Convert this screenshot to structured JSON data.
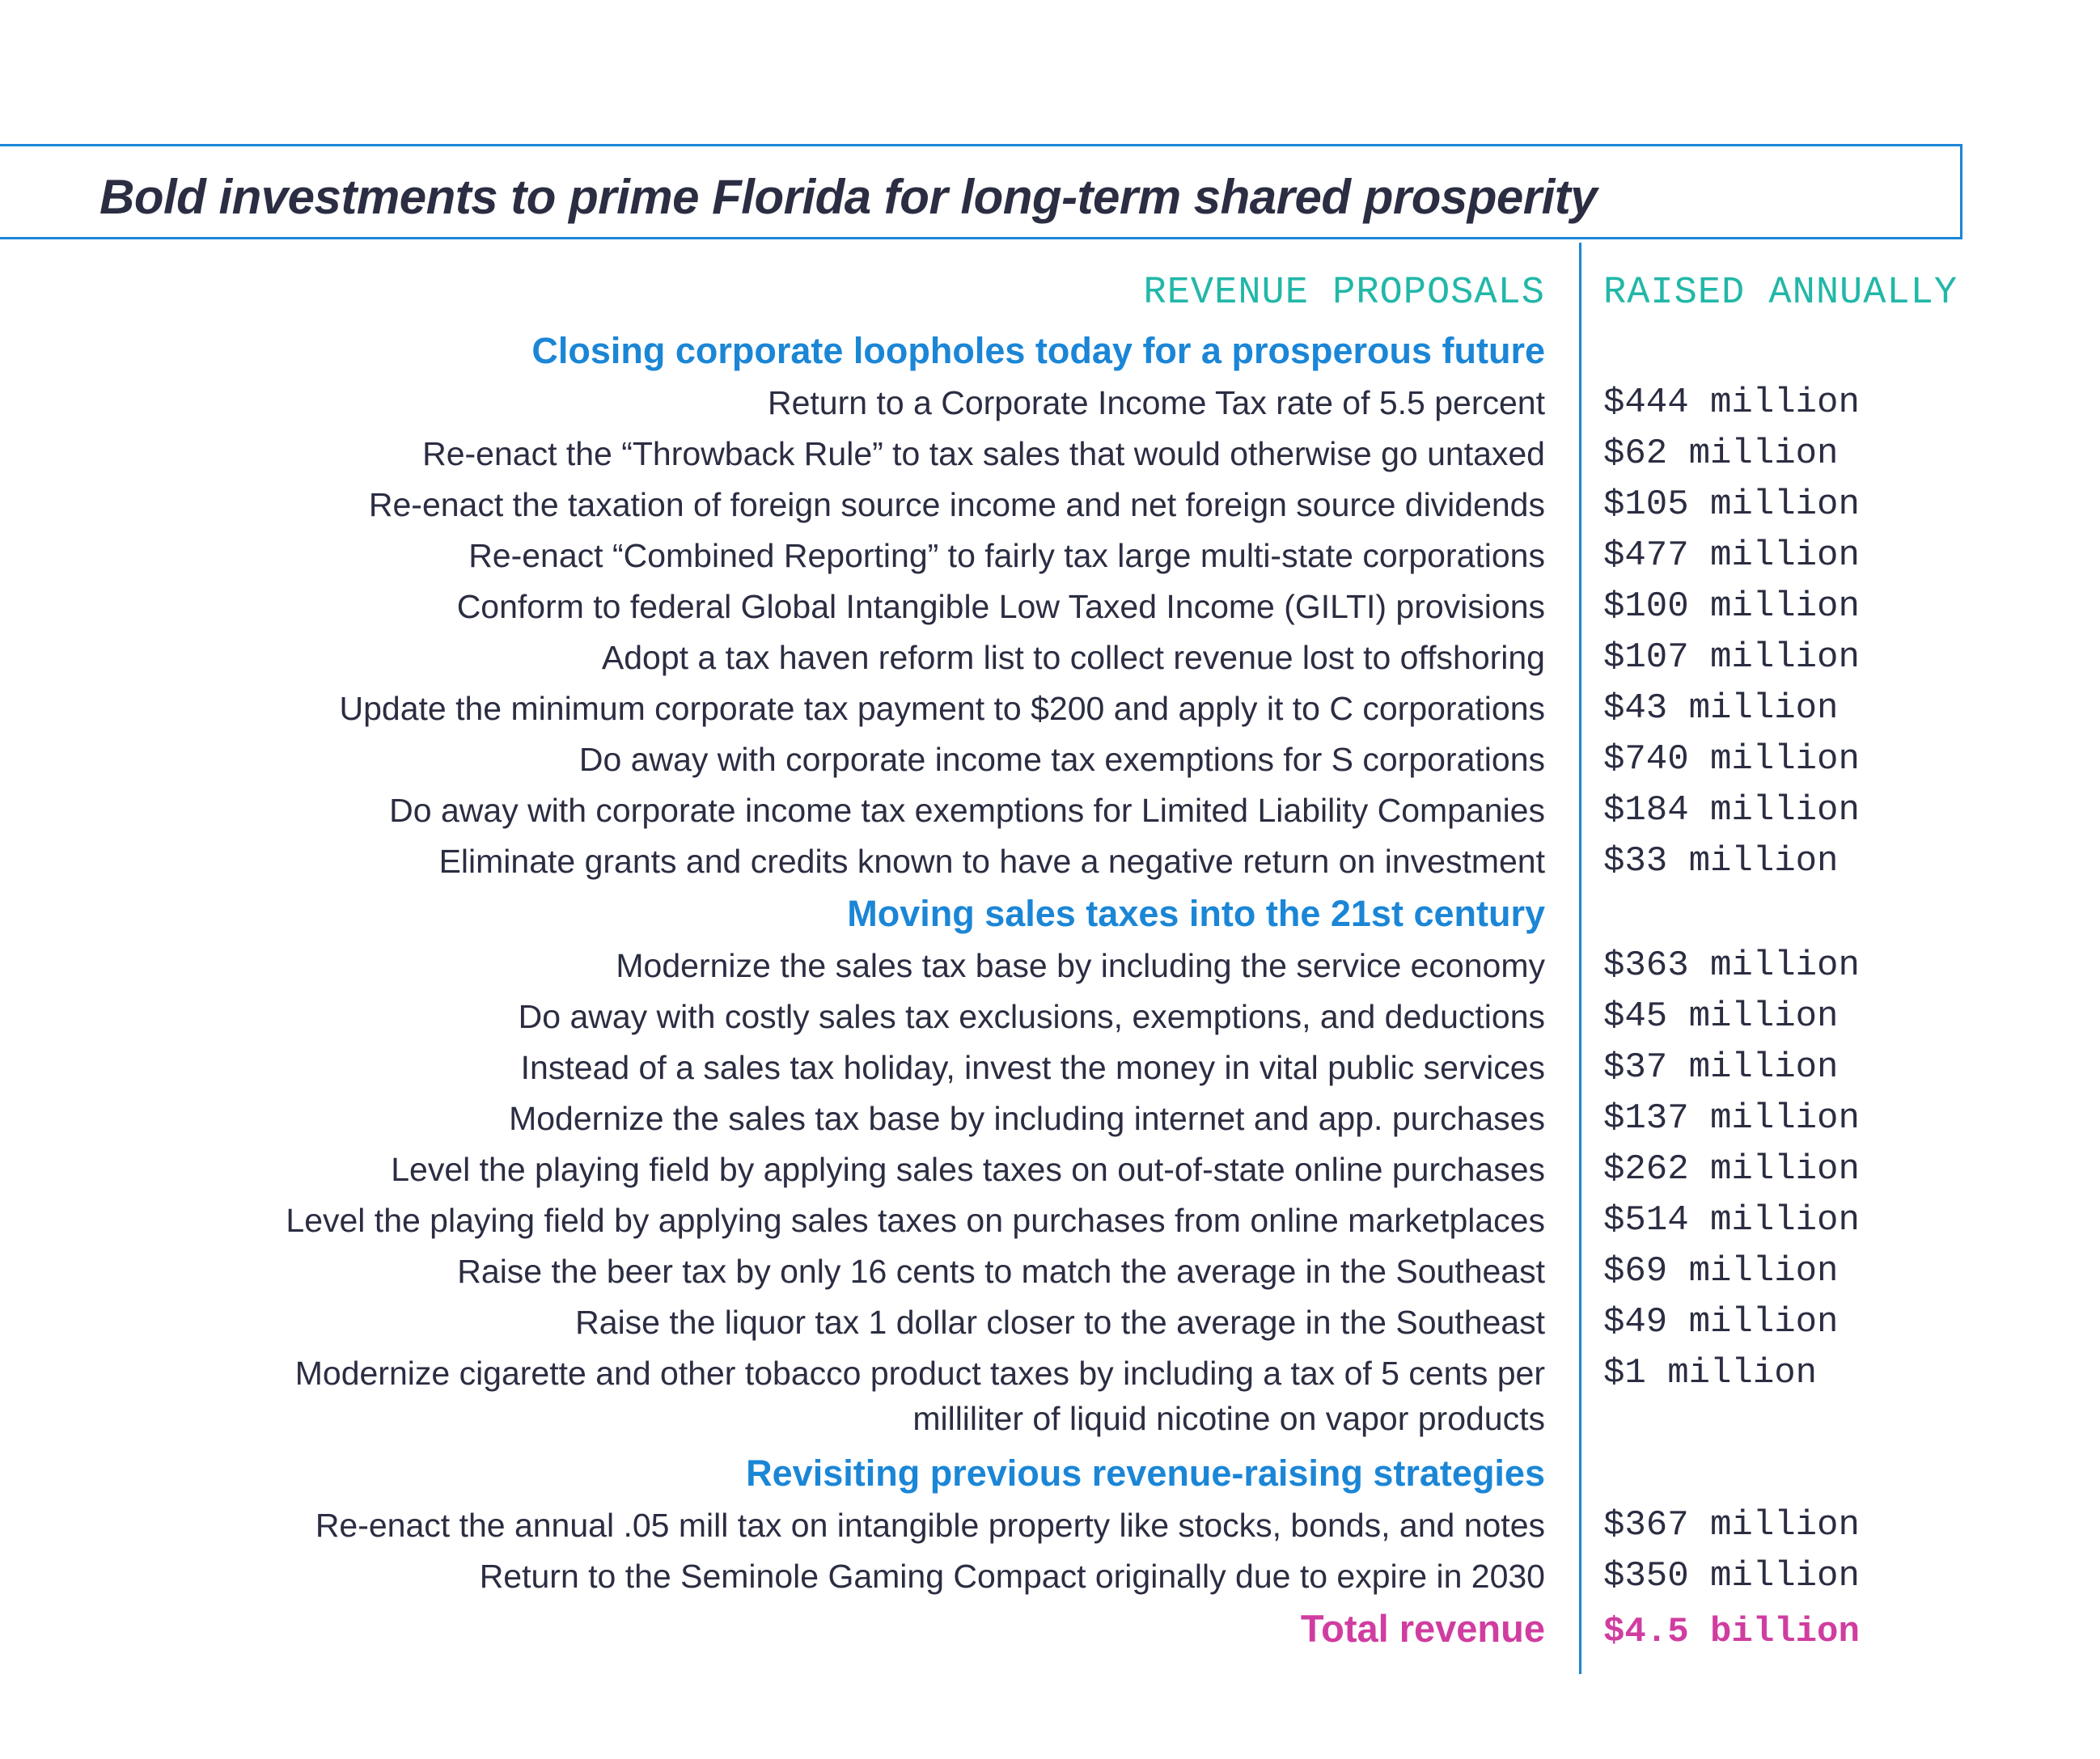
{
  "title": "Bold investments to prime Florida for long-term shared prosperity",
  "columns": {
    "proposals": "REVENUE PROPOSALS",
    "amounts": "RAISED ANNUALLY"
  },
  "sections": [
    {
      "heading": "Closing corporate loopholes today for a prosperous future",
      "items": [
        {
          "label": "Return to a Corporate Income Tax rate of 5.5 percent",
          "amount": "$444 million"
        },
        {
          "label": "Re-enact the “Throwback Rule” to tax sales that would otherwise go untaxed",
          "amount": "$62 million"
        },
        {
          "label": "Re-enact the taxation of foreign source income and net foreign source dividends",
          "amount": "$105 million"
        },
        {
          "label": "Re-enact “Combined Reporting” to fairly tax large multi-state corporations",
          "amount": "$477 million"
        },
        {
          "label": "Conform to federal Global Intangible Low Taxed Income (GILTI) provisions",
          "amount": "$100 million"
        },
        {
          "label": "Adopt a tax haven reform list to collect revenue lost to offshoring",
          "amount": "$107 million"
        },
        {
          "label": "Update the minimum corporate tax payment to $200 and apply it to C corporations",
          "amount": "$43 million"
        },
        {
          "label": "Do away with corporate income tax exemptions for S corporations",
          "amount": "$740 million"
        },
        {
          "label": "Do away with corporate income tax exemptions for Limited Liability Companies",
          "amount": "$184 million"
        },
        {
          "label": "Eliminate grants and credits known to have a negative return on investment",
          "amount": "$33 million"
        }
      ]
    },
    {
      "heading": "Moving sales taxes into the 21st century",
      "items": [
        {
          "label": "Modernize the sales tax base by including the service economy",
          "amount": "$363 million"
        },
        {
          "label": "Do away with costly sales tax exclusions, exemptions, and deductions",
          "amount": "$45 million"
        },
        {
          "label": "Instead of a sales tax holiday, invest the money in vital public services",
          "amount": "$37 million"
        },
        {
          "label": "Modernize the sales tax base by including internet and app. purchases",
          "amount": "$137 million"
        },
        {
          "label": "Level the playing field by applying sales taxes on out-of-state online purchases",
          "amount": "$262 million"
        },
        {
          "label": "Level the playing field by applying sales taxes on purchases from  online marketplaces",
          "amount": "$514 million"
        },
        {
          "label": "Raise the beer tax by only 16 cents to match the average in the Southeast",
          "amount": "$69 million"
        },
        {
          "label": "Raise the liquor tax 1 dollar closer to the average in the Southeast",
          "amount": "$49 million"
        },
        {
          "label": "Modernize cigarette and other tobacco product taxes by including a tax of 5 cents per",
          "label_line2": "milliliter of liquid nicotine on vapor products",
          "amount": "$1 million"
        }
      ]
    },
    {
      "heading": "Revisiting previous revenue-raising strategies",
      "items": [
        {
          "label": "Re-enact the annual .05 mill tax on intangible property like stocks, bonds, and notes",
          "amount": "$367 million"
        },
        {
          "label": "Return to the Seminole Gaming Compact originally due to expire in 2030",
          "amount": "$350 million"
        }
      ]
    }
  ],
  "total": {
    "label": "Total revenue",
    "amount": "$4.5 billion"
  },
  "colors": {
    "accent_blue": "#1b86d6",
    "column_header_teal": "#22b7a8",
    "total_magenta": "#d03da0",
    "body_text": "#2b2d42"
  }
}
